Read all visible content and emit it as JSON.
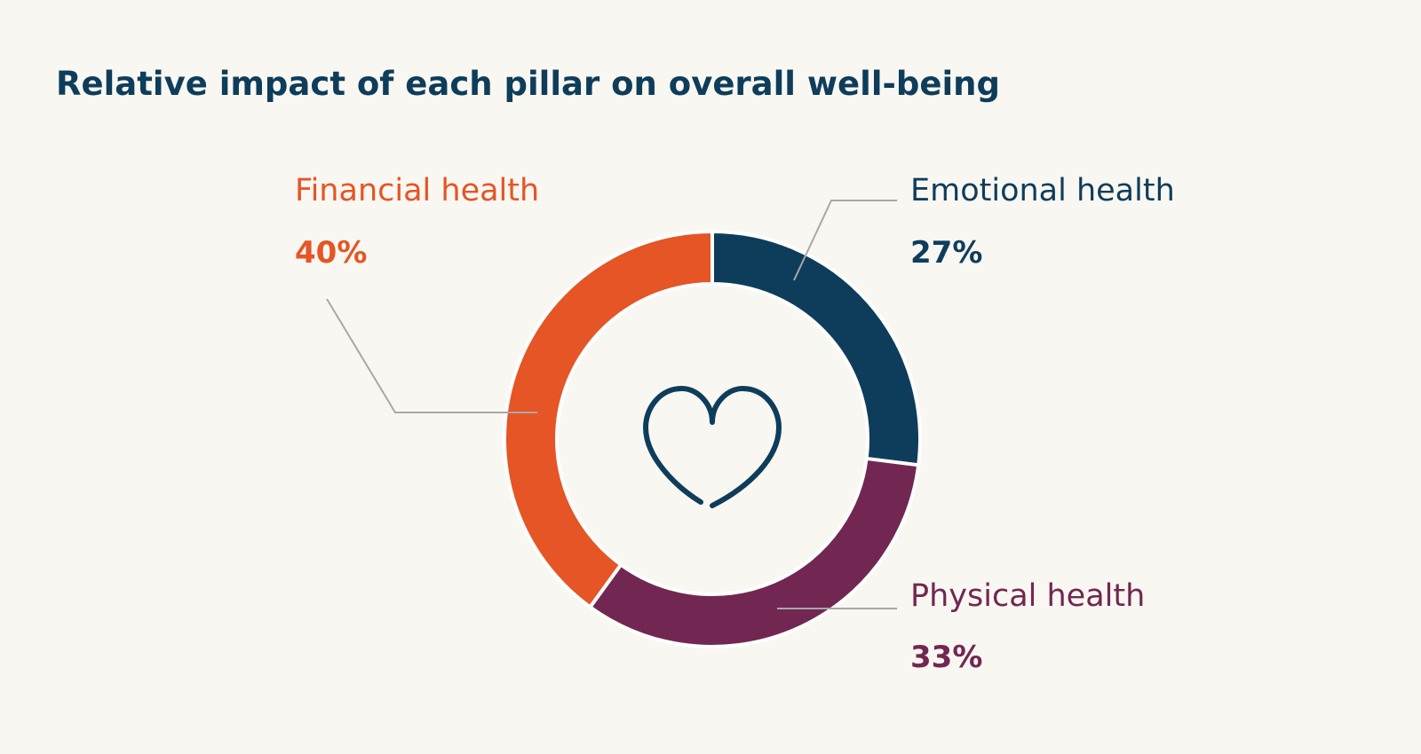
{
  "chart_data": {
    "type": "donut",
    "title": "Relative impact of each pillar on overall well-being",
    "categories": [
      "Emotional health",
      "Physical health",
      "Financial health"
    ],
    "values": [
      27,
      33,
      40
    ],
    "value_labels": [
      "27%",
      "33%",
      "40%"
    ],
    "colors": [
      "#0e3d5c",
      "#722752",
      "#e55526"
    ]
  }
}
